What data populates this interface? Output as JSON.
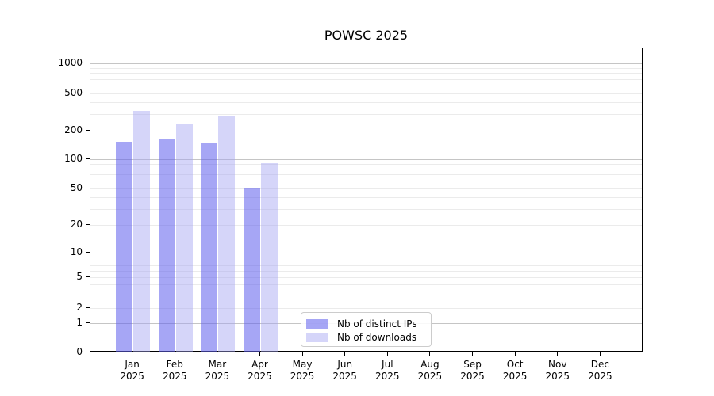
{
  "chart_data": {
    "type": "bar",
    "title": "POWSC 2025",
    "categories": [
      "Jan",
      "Feb",
      "Mar",
      "Apr",
      "May",
      "Jun",
      "Jul",
      "Aug",
      "Sep",
      "Oct",
      "Nov",
      "Dec"
    ],
    "year_label": "2025",
    "series": [
      {
        "name": "Nb of distinct IPs",
        "color": "rgba(96,96,238,0.56)",
        "values": [
          153,
          162,
          148,
          51,
          null,
          null,
          null,
          null,
          null,
          null,
          null,
          null
        ]
      },
      {
        "name": "Nb of downloads",
        "color": "rgba(161,161,241,0.45)",
        "values": [
          324,
          240,
          288,
          91,
          null,
          null,
          null,
          null,
          null,
          null,
          null,
          null
        ]
      }
    ],
    "yticks": [
      0,
      1,
      2,
      5,
      10,
      20,
      50,
      100,
      200,
      500,
      1000
    ],
    "xlabel": "",
    "ylabel": "",
    "ylim": [
      0,
      1400
    ],
    "axis_scale": "symlog",
    "grid": "horizontal-only, log minor lines light, decade lines darker",
    "legend_position": "bottom-center-inside",
    "colors": {
      "major_grid": "#c5c5c5",
      "minor_grid": "#ebebeb",
      "spine": "#000000",
      "background": "#ffffff"
    }
  }
}
